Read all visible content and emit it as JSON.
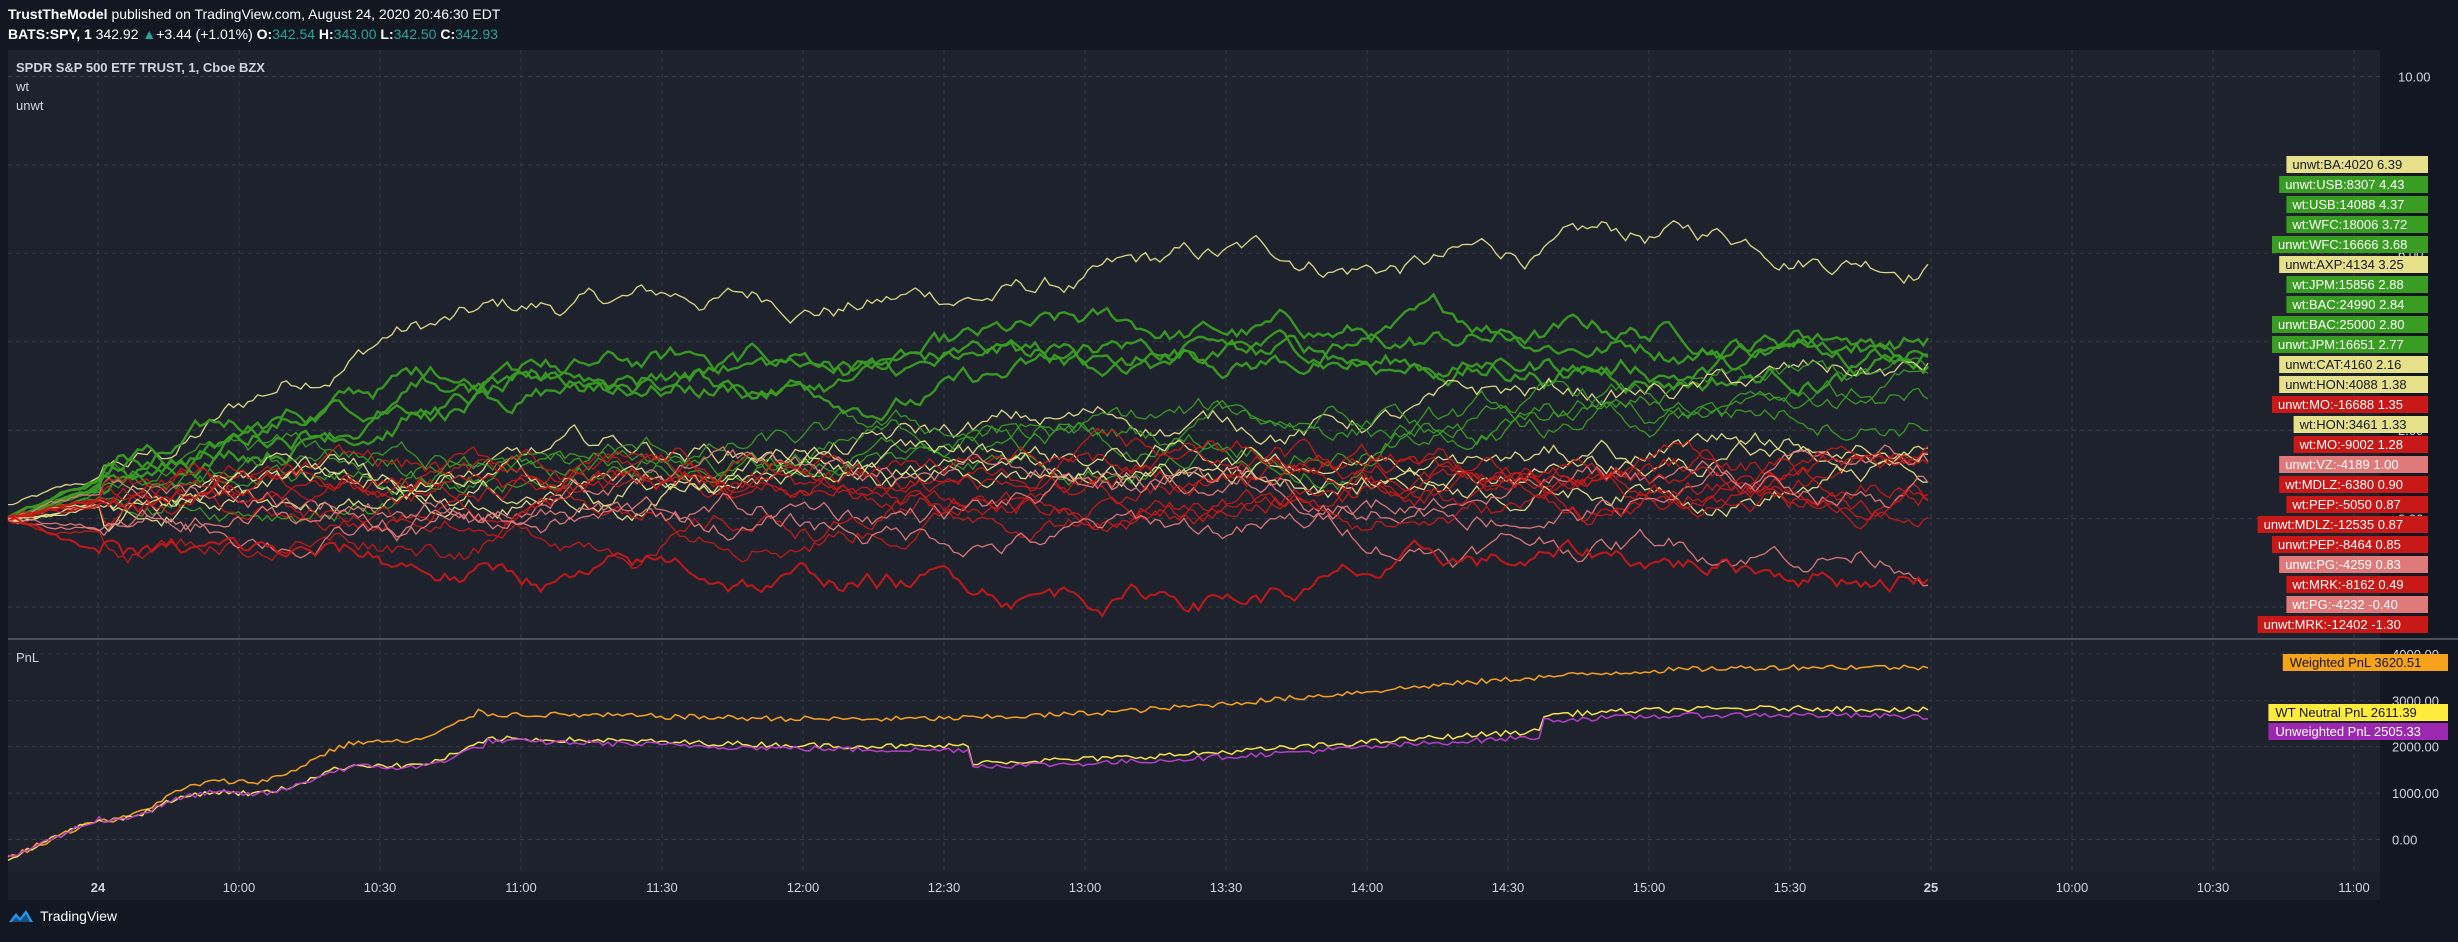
{
  "header": {
    "publisher": "TrustTheModel",
    "published_text": "published on TradingView.com, August 24, 2020 20:46:30 EDT",
    "symbol": "BATS:SPY, 1",
    "last": "342.92",
    "change": "+3.44 (+1.01%)",
    "o_label": "O:",
    "o": "342.54",
    "h_label": "H:",
    "h": "343.00",
    "l_label": "L:",
    "l": "342.50",
    "c_label": "C:",
    "c": "342.93"
  },
  "footer": {
    "brand": "TradingView"
  },
  "colors": {
    "background": "#131722",
    "pane": "#1e222d",
    "grid": "#363a45",
    "up": "#26a69a",
    "green": "#3a9d23",
    "red": "#c91818",
    "pink": "#e07a7a",
    "yellow": "#e6e08a"
  },
  "chart_data": [
    {
      "type": "line",
      "pane": "price",
      "title": "SPDR S&P 500 ETF TRUST, 1, Cboe BZX",
      "legend": [
        "wt",
        "unwt"
      ],
      "y_ticks": [
        "10.00",
        "8.00",
        "6.00",
        "4.00",
        "2.00",
        "0.00",
        "-2.00"
      ],
      "ylim": [
        -2.7,
        10.6
      ],
      "series": [
        {
          "name": "unwt:BA:4020",
          "color": "#e6e08a",
          "value": 6.39,
          "shape": "ba"
        },
        {
          "name": "unwt:USB:8307",
          "color": "#3a9d23",
          "value": 4.43,
          "shape": "green"
        },
        {
          "name": "wt:USB:14088",
          "color": "#3a9d23",
          "value": 4.37,
          "shape": "green"
        },
        {
          "name": "wt:WFC:18006",
          "color": "#3a9d23",
          "value": 3.72,
          "shape": "green"
        },
        {
          "name": "unwt:WFC:16666",
          "color": "#3a9d23",
          "value": 3.68,
          "shape": "green"
        },
        {
          "name": "unwt:AXP:4134",
          "color": "#e6e08a",
          "value": 3.25,
          "shape": "mid"
        },
        {
          "name": "wt:JPM:15856",
          "color": "#3a9d23",
          "value": 2.88,
          "shape": "mid"
        },
        {
          "name": "wt:BAC:24990",
          "color": "#3a9d23",
          "value": 2.84,
          "shape": "mid"
        },
        {
          "name": "unwt:BAC:25000",
          "color": "#3a9d23",
          "value": 2.8,
          "shape": "mid"
        },
        {
          "name": "unwt:JPM:16651",
          "color": "#3a9d23",
          "value": 2.77,
          "shape": "mid"
        },
        {
          "name": "unwt:CAT:4160",
          "color": "#e6e08a",
          "value": 2.16,
          "shape": "mid"
        },
        {
          "name": "unwt:HON:4088",
          "color": "#e6e08a",
          "value": 1.38,
          "shape": "flat"
        },
        {
          "name": "unwt:MO:-16688",
          "color": "#c91818",
          "value": 1.35,
          "shape": "flat"
        },
        {
          "name": "wt:HON:3461",
          "color": "#e6e08a",
          "value": 1.33,
          "shape": "flat"
        },
        {
          "name": "wt:MO:-9002",
          "color": "#c91818",
          "value": 1.28,
          "shape": "flat"
        },
        {
          "name": "unwt:VZ:-4189",
          "color": "#e07a7a",
          "value": 1.0,
          "shape": "flat"
        },
        {
          "name": "wt:MDLZ:-6380",
          "color": "#c91818",
          "value": 0.9,
          "shape": "flat"
        },
        {
          "name": "wt:PEP:-5050",
          "color": "#c91818",
          "value": 0.87,
          "shape": "flat"
        },
        {
          "name": "unwt:MDLZ:-12535",
          "color": "#c91818",
          "value": 0.87,
          "shape": "flat"
        },
        {
          "name": "unwt:PEP:-8464",
          "color": "#c91818",
          "value": 0.85,
          "shape": "flat"
        },
        {
          "name": "unwt:PG:-4259",
          "color": "#e07a7a",
          "value": 0.83,
          "shape": "low"
        },
        {
          "name": "wt:MRK:-8162",
          "color": "#c91818",
          "value": 0.49,
          "shape": "low"
        },
        {
          "name": "wt:PG:-4232",
          "color": "#e07a7a",
          "value": -0.4,
          "shape": "low"
        },
        {
          "name": "unwt:MRK:-12402",
          "color": "#c91818",
          "value": -1.3,
          "shape": "bottom"
        }
      ]
    },
    {
      "type": "line",
      "pane": "pnl",
      "title": "PnL",
      "y_ticks": [
        "4000.00",
        "3000.00",
        "2000.00",
        "1000.00",
        "0.00"
      ],
      "ylim": [
        -700,
        4300
      ],
      "series": [
        {
          "name": "Weighted PnL",
          "color": "#f7a21b",
          "label_color": "#f7a21b",
          "value": 3620.51
        },
        {
          "name": "WT Neutral PnL",
          "color": "#f5e14a",
          "label_color": "#ffeb3b",
          "value": 2611.39
        },
        {
          "name": "Unweighted PnL",
          "color": "#b63ec9",
          "label_color": "#9c27b0",
          "value": 2505.33
        }
      ]
    }
  ],
  "x_axis": {
    "ticks": [
      "24",
      "10:00",
      "10:30",
      "11:00",
      "11:30",
      "12:00",
      "12:30",
      "13:00",
      "13:30",
      "14:00",
      "14:30",
      "15:00",
      "15:30",
      "25",
      "10:00",
      "10:30",
      "11:00"
    ]
  }
}
